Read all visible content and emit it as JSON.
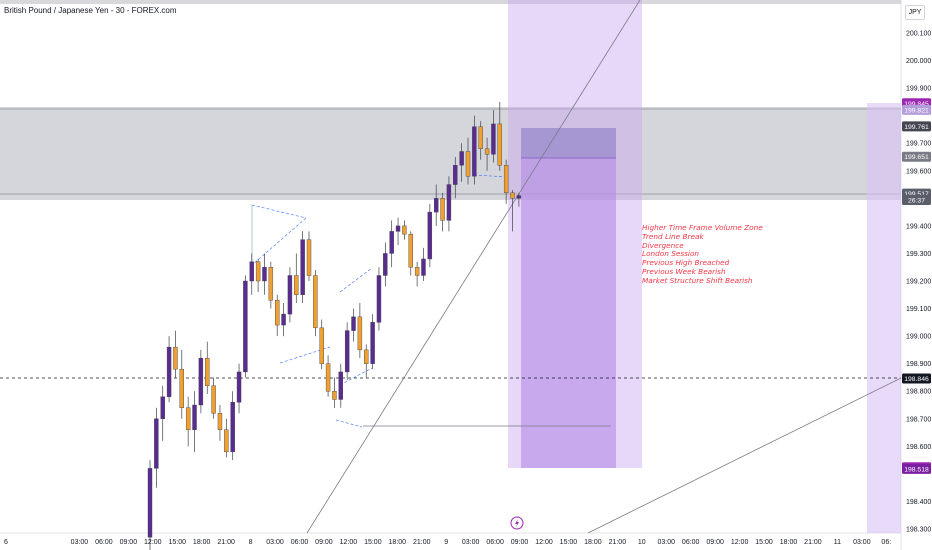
{
  "header": {
    "symbol_title": "British Pound / Japanese Yen - 30 - FOREX.com",
    "currency": "JPY"
  },
  "chart_data": {
    "type": "candlestick",
    "y_axis": {
      "min": 198.3,
      "max": 200.1,
      "ticks": [
        "200.100",
        "200.000",
        "199.900",
        "199.700",
        "199.600",
        "199.400",
        "199.300",
        "199.200",
        "199.100",
        "199.000",
        "198.900",
        "198.800",
        "198.700",
        "198.600",
        "198.400",
        "198.300"
      ]
    },
    "x_axis": {
      "ticks": [
        "6",
        "03:00",
        "06:00",
        "09:00",
        "12:00",
        "15:00",
        "18:00",
        "21:00",
        "8",
        "03:00",
        "06:00",
        "09:00",
        "12:00",
        "15:00",
        "18:00",
        "21:00",
        "9",
        "03:00",
        "06:00",
        "09:00",
        "12:00",
        "15:00",
        "18:00",
        "21:00",
        "10",
        "03:00",
        "06:00",
        "09:00",
        "12:00",
        "15:00",
        "18:00",
        "21:00",
        "11",
        "03:00",
        "06:"
      ]
    },
    "price_labels": [
      {
        "value": "199.845",
        "price": 199.845,
        "bg": "#9c27b0",
        "fg": "#ffffff"
      },
      {
        "value": "199.821",
        "price": 199.821,
        "bg": "#b39ddb",
        "fg": "#ffffff"
      },
      {
        "value": "199.761",
        "price": 199.761,
        "bg": "#434651",
        "fg": "#ffffff"
      },
      {
        "value": "199.651",
        "price": 199.651,
        "bg": "#787b86",
        "fg": "#ffffff"
      },
      {
        "value": "199.517",
        "price": 199.517,
        "bg": "#5a5e6b",
        "fg": "#ffffff"
      },
      {
        "value": "26:37",
        "price": 199.494,
        "bg": "#5a5e6b",
        "fg": "#ffffff"
      },
      {
        "value": "198.846",
        "price": 198.846,
        "bg": "#131722",
        "fg": "#ffffff"
      },
      {
        "value": "198.524",
        "price": 198.524,
        "bg": "#9c27b0",
        "fg": "#ffffff"
      },
      {
        "value": "198.518",
        "price": 198.518,
        "bg": "#7b1fa2",
        "fg": "#ffffff"
      }
    ],
    "annotations": [
      "Higher Time Frame Volume Zone",
      "Trend Line Break",
      "Divergence",
      "London Session",
      "Previous High Breached",
      "Previous Week Bearish",
      "Market Structure Shift Bearish"
    ],
    "candles": [
      [
        198.27,
        198.55,
        198.2,
        198.52
      ],
      [
        198.52,
        198.74,
        198.45,
        198.7
      ],
      [
        198.7,
        198.82,
        198.62,
        198.78
      ],
      [
        198.78,
        199.0,
        198.76,
        198.96
      ],
      [
        198.96,
        199.02,
        198.85,
        198.88
      ],
      [
        198.88,
        198.95,
        198.7,
        198.74
      ],
      [
        198.74,
        198.78,
        198.6,
        198.66
      ],
      [
        198.66,
        198.8,
        198.58,
        198.75
      ],
      [
        198.75,
        198.95,
        198.72,
        198.92
      ],
      [
        198.92,
        198.98,
        198.79,
        198.82
      ],
      [
        198.82,
        198.85,
        198.7,
        198.72
      ],
      [
        198.72,
        198.75,
        198.62,
        198.66
      ],
      [
        198.66,
        198.7,
        198.56,
        198.58
      ],
      [
        198.58,
        198.8,
        198.55,
        198.76
      ],
      [
        198.76,
        198.9,
        198.72,
        198.87
      ],
      [
        198.87,
        199.22,
        198.85,
        199.2
      ],
      [
        199.2,
        199.3,
        199.15,
        199.27
      ],
      [
        199.27,
        199.28,
        199.16,
        199.2
      ],
      [
        199.2,
        199.3,
        199.15,
        199.25
      ],
      [
        199.25,
        199.27,
        199.1,
        199.13
      ],
      [
        199.13,
        199.15,
        199.0,
        199.04
      ],
      [
        199.04,
        199.12,
        199.0,
        199.08
      ],
      [
        199.08,
        199.25,
        199.05,
        199.22
      ],
      [
        199.22,
        199.3,
        199.12,
        199.15
      ],
      [
        199.15,
        199.38,
        199.12,
        199.35
      ],
      [
        199.35,
        199.38,
        199.2,
        199.22
      ],
      [
        199.22,
        199.24,
        199.0,
        199.03
      ],
      [
        199.03,
        199.06,
        198.88,
        198.9
      ],
      [
        198.9,
        198.93,
        198.78,
        198.8
      ],
      [
        198.8,
        198.85,
        198.74,
        198.77
      ],
      [
        198.77,
        198.9,
        198.74,
        198.87
      ],
      [
        198.87,
        199.05,
        198.84,
        199.02
      ],
      [
        199.02,
        199.1,
        198.98,
        199.07
      ],
      [
        199.07,
        199.12,
        198.92,
        198.95
      ],
      [
        198.95,
        198.97,
        198.85,
        198.9
      ],
      [
        198.9,
        199.08,
        198.88,
        199.05
      ],
      [
        199.05,
        199.25,
        199.02,
        199.22
      ],
      [
        199.22,
        199.34,
        199.18,
        199.3
      ],
      [
        199.3,
        199.42,
        199.25,
        199.38
      ],
      [
        199.38,
        199.43,
        199.33,
        199.4
      ],
      [
        199.4,
        199.42,
        199.35,
        199.37
      ],
      [
        199.37,
        199.38,
        199.22,
        199.25
      ],
      [
        199.25,
        199.27,
        199.18,
        199.22
      ],
      [
        199.22,
        199.32,
        199.2,
        199.28
      ],
      [
        199.28,
        199.48,
        199.25,
        199.45
      ],
      [
        199.45,
        199.55,
        199.4,
        199.5
      ],
      [
        199.5,
        199.52,
        199.38,
        199.42
      ],
      [
        199.42,
        199.58,
        199.38,
        199.55
      ],
      [
        199.55,
        199.65,
        199.5,
        199.62
      ],
      [
        199.62,
        199.7,
        199.56,
        199.67
      ],
      [
        199.67,
        199.72,
        199.55,
        199.58
      ],
      [
        199.58,
        199.8,
        199.55,
        199.76
      ],
      [
        199.76,
        199.78,
        199.64,
        199.68
      ],
      [
        199.68,
        199.72,
        199.6,
        199.66
      ],
      [
        199.66,
        199.82,
        199.63,
        199.77
      ],
      [
        199.77,
        199.85,
        199.6,
        199.62
      ],
      [
        199.62,
        199.64,
        199.48,
        199.52
      ],
      [
        199.52,
        199.53,
        199.38,
        199.5
      ],
      [
        199.5,
        199.52,
        199.47,
        199.51
      ]
    ]
  }
}
